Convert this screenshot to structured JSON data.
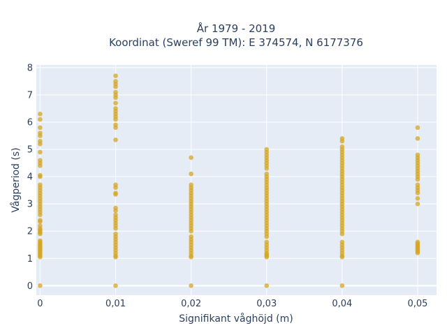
{
  "chart_data": {
    "type": "scatter",
    "title_line1": "År 1979 - 2019",
    "title_line2": "Koordinat (Sweref 99 TM): E 374574, N 6177376",
    "xlabel": "Signifikant våghöjd (m)",
    "ylabel": "Vågperiod (s)",
    "x_ticks": [
      0,
      0.01,
      0.02,
      0.03,
      0.04,
      0.05
    ],
    "x_tick_labels": [
      "0",
      "0,01",
      "0,02",
      "0,03",
      "0,04",
      "0,05"
    ],
    "y_ticks": [
      0,
      1,
      2,
      3,
      4,
      5,
      6,
      7,
      8
    ],
    "y_tick_labels": [
      "0",
      "1",
      "2",
      "3",
      "4",
      "5",
      "6",
      "7",
      "8"
    ],
    "xlim": [
      -0.0005,
      0.0525
    ],
    "ylim": [
      -0.35,
      8.1
    ],
    "grid": true,
    "colors": {
      "marker": "#d4a520",
      "plot_bg": "#e5ecf6",
      "grid": "#ffffff",
      "text": "#2a3f5f"
    },
    "series": [
      {
        "x": 0,
        "y": [
          0,
          1.05,
          1.1,
          1.15,
          1.2,
          1.25,
          1.3,
          1.35,
          1.4,
          1.45,
          1.5,
          1.55,
          1.6,
          1.65,
          1.9,
          1.95,
          2.0,
          2.05,
          2.1,
          2.2,
          2.35,
          2.4,
          2.6,
          2.7,
          2.8,
          2.9,
          3.0,
          3.1,
          3.2,
          3.3,
          3.4,
          3.5,
          3.6,
          3.7,
          4.0,
          4.05,
          4.4,
          4.5,
          4.6,
          4.9,
          5.2,
          5.3,
          5.5,
          5.6,
          5.8,
          6.1,
          6.3
        ]
      },
      {
        "x": 0.01,
        "y": [
          0,
          1.05,
          1.1,
          1.2,
          1.3,
          1.4,
          1.5,
          1.6,
          1.7,
          1.8,
          1.9,
          2.1,
          2.2,
          2.3,
          2.4,
          2.5,
          2.6,
          2.75,
          2.85,
          3.35,
          3.4,
          3.6,
          3.7,
          5.35,
          5.8,
          5.9,
          6.1,
          6.2,
          6.3,
          6.4,
          6.5,
          6.7,
          6.9,
          7.0,
          7.1,
          7.3,
          7.4,
          7.5,
          7.7
        ]
      },
      {
        "x": 0.02,
        "y": [
          0,
          1.05,
          1.1,
          1.2,
          1.3,
          1.4,
          1.5,
          1.6,
          1.7,
          1.8,
          2.0,
          2.1,
          2.2,
          2.3,
          2.4,
          2.5,
          2.6,
          2.7,
          2.8,
          2.9,
          3.0,
          3.1,
          3.2,
          3.3,
          3.4,
          3.5,
          3.6,
          3.7,
          4.1,
          4.7
        ]
      },
      {
        "x": 0.03,
        "y": [
          0,
          1.05,
          1.1,
          1.15,
          1.2,
          1.3,
          1.4,
          1.5,
          1.6,
          1.8,
          1.9,
          2.0,
          2.1,
          2.2,
          2.3,
          2.4,
          2.5,
          2.6,
          2.7,
          2.8,
          2.9,
          3.0,
          3.1,
          3.2,
          3.3,
          3.4,
          3.5,
          3.6,
          3.7,
          3.8,
          3.9,
          4.0,
          4.1,
          4.3,
          4.4,
          4.5,
          4.6,
          4.7,
          4.8,
          4.9,
          5.0
        ]
      },
      {
        "x": 0.04,
        "y": [
          0,
          1.05,
          1.1,
          1.2,
          1.3,
          1.4,
          1.5,
          1.6,
          1.9,
          2.0,
          2.1,
          2.2,
          2.3,
          2.4,
          2.5,
          2.6,
          2.7,
          2.8,
          2.9,
          3.0,
          3.1,
          3.2,
          3.3,
          3.4,
          3.5,
          3.6,
          3.7,
          3.8,
          3.9,
          4.0,
          4.1,
          4.2,
          4.3,
          4.4,
          4.5,
          4.6,
          4.7,
          4.8,
          4.9,
          5.0,
          5.1,
          5.3,
          5.4
        ]
      },
      {
        "x": 0.05,
        "y": [
          1.2,
          1.25,
          1.3,
          1.35,
          1.4,
          1.45,
          1.5,
          1.55,
          1.6,
          3.0,
          3.2,
          3.4,
          3.5,
          3.6,
          3.7,
          3.9,
          4.0,
          4.1,
          4.2,
          4.3,
          4.4,
          4.5,
          4.6,
          4.7,
          4.8,
          5.4,
          5.8
        ]
      }
    ]
  }
}
